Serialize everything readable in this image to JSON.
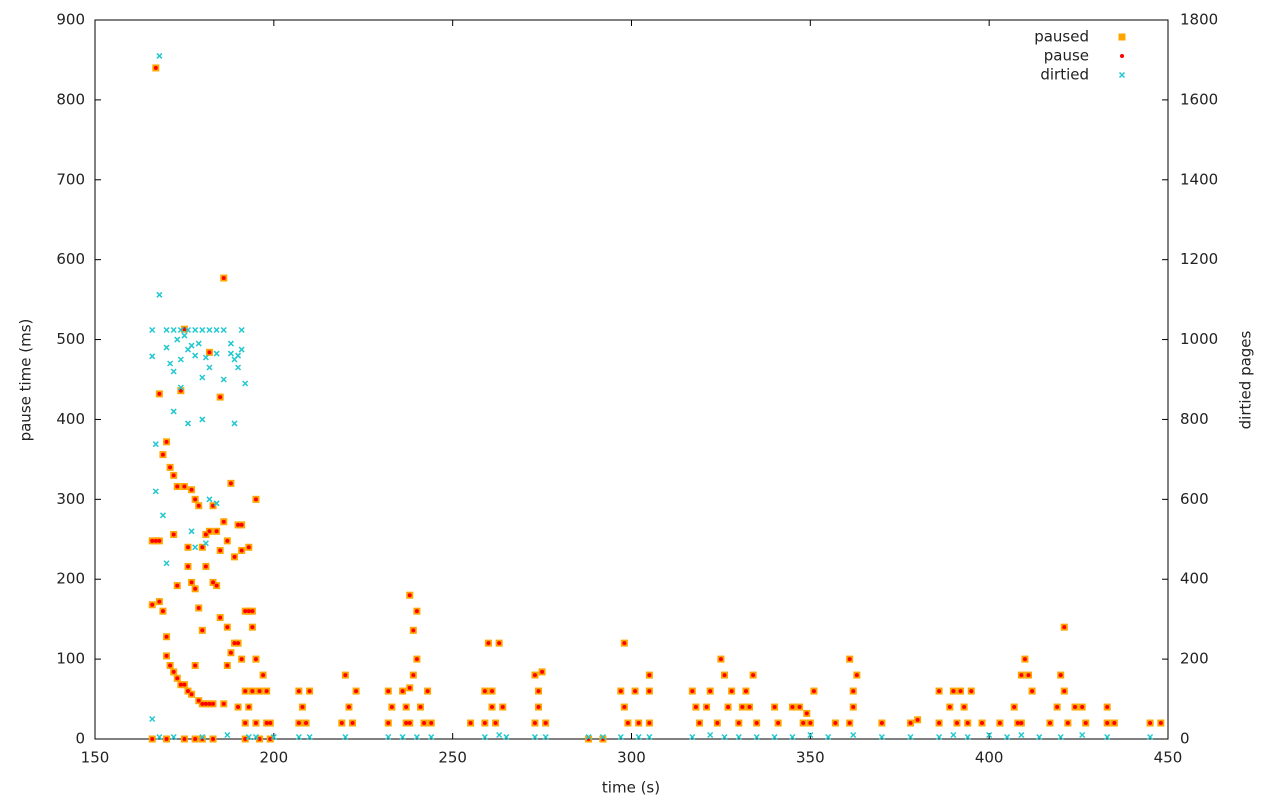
{
  "chart_data": {
    "type": "scatter",
    "xlabel": "time (s)",
    "ylabel": "pause time (ms)",
    "y2label": "dirtied pages",
    "xlim": [
      150,
      450
    ],
    "xticks": [
      150,
      200,
      250,
      300,
      350,
      400,
      450
    ],
    "ylim": [
      0,
      900
    ],
    "yticks": [
      0,
      100,
      200,
      300,
      400,
      500,
      600,
      700,
      800,
      900
    ],
    "y2lim": [
      0,
      1800
    ],
    "y2ticks": [
      0,
      200,
      400,
      600,
      800,
      1000,
      1200,
      1400,
      1600,
      1800
    ],
    "legend": "top-right",
    "grid": false,
    "series": [
      {
        "name": "paused",
        "color": "#ffa500",
        "marker": "square",
        "x": [
          167,
          186,
          175,
          182,
          168,
          185,
          174,
          169,
          170,
          171,
          172,
          173,
          175,
          177,
          178,
          179,
          188,
          195,
          183,
          186,
          190,
          191,
          172,
          176,
          180,
          181,
          184,
          182,
          185,
          187,
          193,
          166,
          167,
          168,
          189,
          191,
          183,
          184,
          181,
          176,
          177,
          178,
          173,
          179,
          166,
          168,
          169,
          192,
          193,
          194,
          187,
          189,
          190,
          194,
          185,
          170,
          180,
          170,
          171,
          172,
          173,
          174,
          175,
          176,
          177,
          178,
          179,
          180,
          181,
          182,
          183,
          186,
          187,
          188,
          191,
          195,
          196,
          197,
          198,
          192,
          193,
          194,
          190,
          192,
          195,
          198,
          199,
          166,
          170,
          175,
          178,
          180,
          183,
          192,
          196,
          199,
          207,
          208,
          209,
          210,
          207,
          220,
          221,
          219,
          223,
          222,
          232,
          233,
          232,
          236,
          237,
          238,
          239,
          240,
          240,
          239,
          238,
          241,
          243,
          238,
          242,
          237,
          244,
          255,
          259,
          260,
          261,
          263,
          261,
          262,
          259,
          264,
          273,
          274,
          275,
          274,
          276,
          273,
          288,
          292,
          298,
          297,
          298,
          299,
          301,
          302,
          305,
          305,
          305,
          317,
          318,
          319,
          321,
          322,
          324,
          325,
          326,
          327,
          328,
          330,
          331,
          332,
          334,
          333,
          335,
          340,
          341,
          345,
          347,
          348,
          349,
          351,
          350,
          357,
          361,
          362,
          363,
          362,
          361,
          370,
          378,
          380,
          386,
          386,
          389,
          390,
          392,
          391,
          393,
          394,
          395,
          398,
          403,
          407,
          408,
          409,
          410,
          411,
          412,
          409,
          417,
          419,
          420,
          421,
          421,
          422,
          424,
          426,
          427,
          433,
          433,
          435,
          445,
          448
        ],
        "values": [
          840,
          577,
          513,
          484,
          432,
          428,
          436,
          356,
          372,
          340,
          330,
          316,
          316,
          312,
          300,
          292,
          320,
          300,
          292,
          272,
          268,
          268,
          256,
          240,
          240,
          256,
          260,
          260,
          236,
          248,
          240,
          248,
          248,
          248,
          228,
          236,
          196,
          192,
          216,
          216,
          196,
          188,
          192,
          164,
          168,
          172,
          160,
          160,
          160,
          160,
          140,
          120,
          120,
          140,
          152,
          128,
          136,
          104,
          92,
          84,
          76,
          68,
          68,
          60,
          56,
          92,
          48,
          44,
          44,
          44,
          44,
          44,
          92,
          108,
          100,
          100,
          60,
          80,
          60,
          60,
          40,
          60,
          40,
          20,
          20,
          20,
          20,
          0,
          0,
          0,
          0,
          0,
          0,
          0,
          0,
          0,
          60,
          40,
          20,
          60,
          20,
          80,
          40,
          20,
          60,
          20,
          60,
          40,
          20,
          60,
          40,
          180,
          136,
          160,
          100,
          80,
          64,
          40,
          60,
          20,
          20,
          20,
          20,
          20,
          60,
          120,
          40,
          120,
          60,
          20,
          20,
          40,
          80,
          60,
          84,
          40,
          20,
          20,
          0,
          0,
          120,
          60,
          40,
          20,
          60,
          20,
          80,
          60,
          20,
          60,
          40,
          20,
          40,
          60,
          20,
          100,
          80,
          40,
          60,
          20,
          40,
          60,
          80,
          40,
          20,
          40,
          20,
          40,
          40,
          20,
          32,
          60,
          20,
          20,
          100,
          40,
          80,
          60,
          20,
          20,
          20,
          24,
          60,
          20,
          40,
          60,
          60,
          20,
          40,
          20,
          60,
          20,
          20,
          40,
          20,
          80,
          100,
          80,
          60,
          20,
          20,
          40,
          80,
          140,
          60,
          20,
          40,
          40,
          20,
          40,
          20,
          20,
          20,
          20
        ]
      },
      {
        "name": "pause",
        "color": "#ff0000",
        "marker": "circle",
        "x": [
          167,
          186,
          175,
          182,
          168,
          185,
          174,
          169,
          170,
          171,
          172,
          173,
          175,
          177,
          178,
          179,
          188,
          195,
          183,
          186,
          190,
          191,
          172,
          176,
          180,
          181,
          184,
          182,
          185,
          187,
          193,
          166,
          167,
          168,
          189,
          191,
          183,
          184,
          181,
          176,
          177,
          178,
          173,
          179,
          166,
          168,
          169,
          192,
          193,
          194,
          187,
          189,
          190,
          194,
          185,
          170,
          180,
          170,
          171,
          172,
          173,
          174,
          175,
          176,
          177,
          178,
          179,
          180,
          181,
          182,
          183,
          186,
          187,
          188,
          191,
          195,
          196,
          197,
          198,
          192,
          193,
          194,
          190,
          192,
          195,
          198,
          199,
          166,
          170,
          175,
          178,
          180,
          183,
          192,
          196,
          199,
          207,
          208,
          209,
          210,
          207,
          220,
          221,
          219,
          223,
          222,
          232,
          233,
          232,
          236,
          237,
          238,
          239,
          240,
          240,
          239,
          238,
          241,
          243,
          238,
          242,
          237,
          244,
          255,
          259,
          260,
          261,
          263,
          261,
          262,
          259,
          264,
          273,
          274,
          275,
          274,
          276,
          273,
          288,
          292,
          298,
          297,
          298,
          299,
          301,
          302,
          305,
          305,
          305,
          317,
          318,
          319,
          321,
          322,
          324,
          325,
          326,
          327,
          328,
          330,
          331,
          332,
          334,
          333,
          335,
          340,
          341,
          345,
          347,
          348,
          349,
          351,
          350,
          357,
          361,
          362,
          363,
          362,
          361,
          370,
          378,
          380,
          386,
          386,
          389,
          390,
          392,
          391,
          393,
          394,
          395,
          398,
          403,
          407,
          408,
          409,
          410,
          411,
          412,
          409,
          417,
          419,
          420,
          421,
          421,
          422,
          424,
          426,
          427,
          433,
          433,
          435,
          445,
          448
        ],
        "values": [
          840,
          577,
          513,
          484,
          432,
          428,
          436,
          356,
          372,
          340,
          330,
          316,
          316,
          312,
          300,
          292,
          320,
          300,
          292,
          272,
          268,
          268,
          256,
          240,
          240,
          256,
          260,
          260,
          236,
          248,
          240,
          248,
          248,
          248,
          228,
          236,
          196,
          192,
          216,
          216,
          196,
          188,
          192,
          164,
          168,
          172,
          160,
          160,
          160,
          160,
          140,
          120,
          120,
          140,
          152,
          128,
          136,
          104,
          92,
          84,
          76,
          68,
          68,
          60,
          56,
          92,
          48,
          44,
          44,
          44,
          44,
          44,
          92,
          108,
          100,
          100,
          60,
          80,
          60,
          60,
          40,
          60,
          40,
          20,
          20,
          20,
          20,
          0,
          0,
          0,
          0,
          0,
          0,
          0,
          0,
          0,
          60,
          40,
          20,
          60,
          20,
          80,
          40,
          20,
          60,
          20,
          60,
          40,
          20,
          60,
          40,
          180,
          136,
          160,
          100,
          80,
          64,
          40,
          60,
          20,
          20,
          20,
          20,
          20,
          60,
          120,
          40,
          120,
          60,
          20,
          20,
          40,
          80,
          60,
          84,
          40,
          20,
          20,
          0,
          0,
          120,
          60,
          40,
          20,
          60,
          20,
          80,
          60,
          20,
          60,
          40,
          20,
          40,
          60,
          20,
          100,
          80,
          40,
          60,
          20,
          40,
          60,
          80,
          40,
          20,
          40,
          20,
          40,
          40,
          20,
          32,
          60,
          20,
          20,
          100,
          40,
          80,
          60,
          20,
          20,
          20,
          24,
          60,
          20,
          40,
          60,
          60,
          20,
          40,
          20,
          60,
          20,
          20,
          40,
          20,
          80,
          100,
          80,
          60,
          20,
          20,
          40,
          80,
          140,
          60,
          20,
          40,
          40,
          20,
          40,
          20,
          20,
          20,
          20
        ]
      },
      {
        "name": "dirtied",
        "color": "#22c8d0",
        "marker": "x",
        "axis": "y2",
        "x": [
          168,
          168,
          166,
          170,
          172,
          174,
          176,
          178,
          180,
          182,
          184,
          186,
          191,
          173,
          175,
          177,
          179,
          181,
          171,
          172,
          170,
          166,
          174,
          176,
          178,
          180,
          182,
          184,
          186,
          188,
          189,
          190,
          191,
          192,
          188,
          190,
          167,
          167,
          169,
          170,
          172,
          174,
          176,
          177,
          178,
          180,
          181,
          184,
          182,
          189,
          166,
          168,
          172,
          180,
          187,
          193,
          195,
          200,
          207,
          210,
          220,
          232,
          236,
          240,
          244,
          259,
          263,
          265,
          273,
          276,
          288,
          292,
          297,
          302,
          305,
          317,
          322,
          326,
          330,
          335,
          340,
          345,
          350,
          355,
          362,
          370,
          378,
          386,
          390,
          394,
          400,
          405,
          409,
          414,
          420,
          426,
          433,
          445
        ],
        "values": [
          1710,
          1112,
          1024,
          1024,
          1024,
          1024,
          1024,
          1024,
          1024,
          1024,
          1024,
          1024,
          1024,
          1000,
          1010,
          985,
          990,
          955,
          940,
          920,
          980,
          958,
          950,
          975,
          960,
          905,
          930,
          965,
          900,
          965,
          950,
          930,
          975,
          890,
          990,
          960,
          738,
          620,
          560,
          440,
          820,
          880,
          790,
          520,
          480,
          800,
          490,
          590,
          600,
          790,
          50,
          5,
          5,
          5,
          10,
          5,
          5,
          5,
          5,
          5,
          5,
          5,
          5,
          5,
          5,
          5,
          10,
          5,
          5,
          5,
          5,
          5,
          5,
          5,
          5,
          5,
          10,
          5,
          5,
          5,
          5,
          5,
          10,
          5,
          10,
          5,
          5,
          5,
          10,
          5,
          10,
          5,
          10,
          5,
          5,
          10,
          5,
          5
        ]
      }
    ]
  }
}
